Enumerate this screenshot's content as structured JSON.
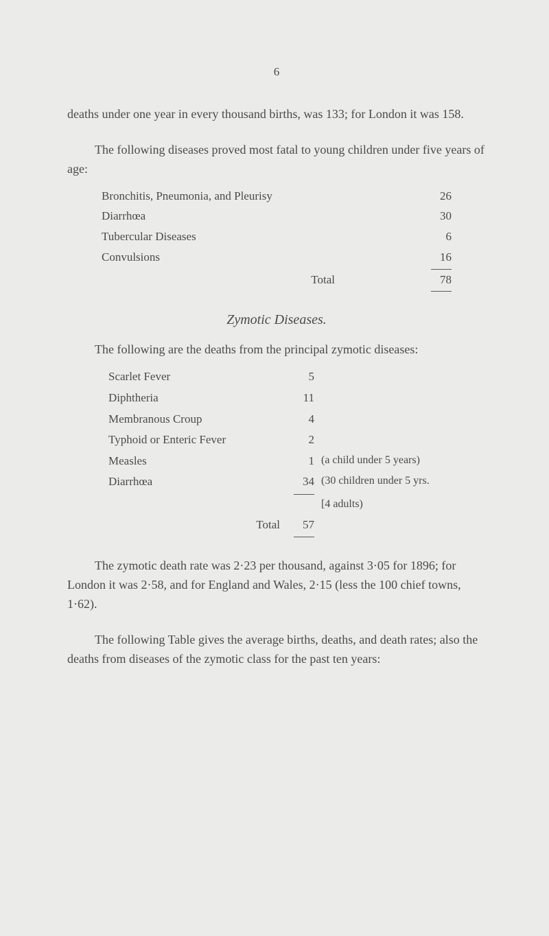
{
  "page_number": "6",
  "para1": "deaths under one year in every thousand births, was 133; for London it was 158.",
  "para2": "The following diseases proved most fatal to young children under five years of age:",
  "table1": {
    "rows": [
      {
        "label": "Bronchitis, Pneumonia, and Pleurisy",
        "value": "26"
      },
      {
        "label": "Diarrhœa",
        "value": "30"
      },
      {
        "label": "Tubercular Diseases",
        "value": "6"
      },
      {
        "label": "Convulsions",
        "value": "16"
      }
    ],
    "total_label": "Total",
    "total_value": "78"
  },
  "section_title": "Zymotic Diseases.",
  "para3": "The following are the deaths from the principal zymotic diseases:",
  "table2": {
    "rows": [
      {
        "label": "Scarlet Fever",
        "value": "5",
        "note": ""
      },
      {
        "label": "Diphtheria",
        "value": "11",
        "note": ""
      },
      {
        "label": "Membranous Croup",
        "value": "4",
        "note": ""
      },
      {
        "label": "Typhoid or Enteric Fever",
        "value": "2",
        "note": ""
      },
      {
        "label": "Measles",
        "value": "1",
        "note": "(a child under 5 years)"
      },
      {
        "label": "Diarrhœa",
        "value": "34",
        "note": "(30 children under 5 yrs."
      },
      {
        "label": "",
        "value": "",
        "note": "[4 adults)"
      }
    ],
    "total_label": "Total",
    "total_value": "57"
  },
  "para4": "The zymotic death rate was 2·23 per thousand, against 3·05 for 1896; for London it was 2·58, and for England and Wales, 2·15 (less the 100 chief towns, 1·62).",
  "para5": "The following Table gives the average births, deaths, and death rates; also the deaths from diseases of the zymotic class for the past ten years:"
}
